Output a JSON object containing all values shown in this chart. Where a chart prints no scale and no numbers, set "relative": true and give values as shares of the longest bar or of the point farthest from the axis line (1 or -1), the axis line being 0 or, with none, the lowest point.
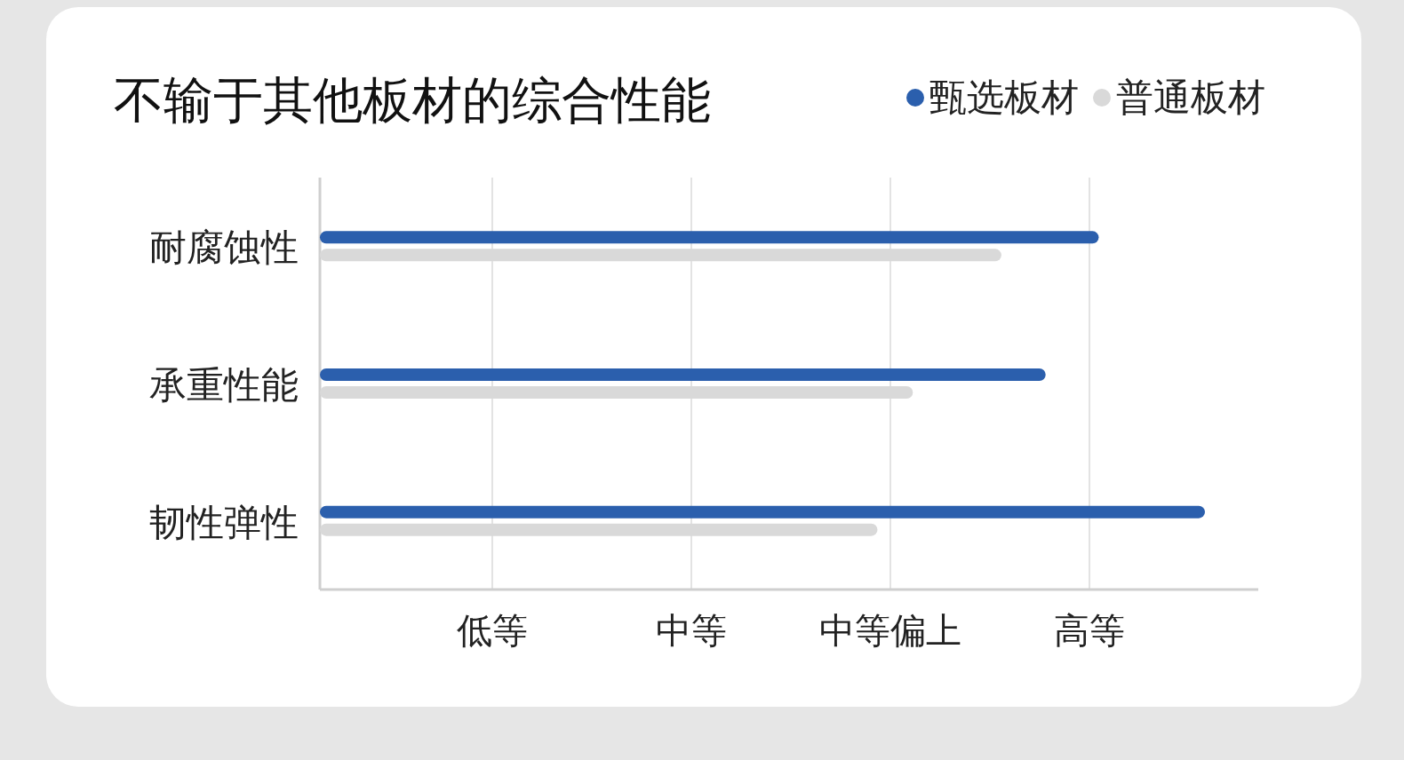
{
  "chart_data": {
    "type": "bar",
    "orientation": "horizontal",
    "relative": true,
    "title": "不输于其他板材的综合性能",
    "categories": [
      "耐腐蚀性",
      "承重性能",
      "韧性弹性"
    ],
    "series": [
      {
        "name": "甄选板材",
        "color": "#2b5fad",
        "values": [
          0.88,
          0.82,
          1
        ]
      },
      {
        "name": "普通板材",
        "color": "#d9d9d9",
        "values": [
          0.77,
          0.67,
          0.63
        ]
      }
    ],
    "annotations": [
      "低等",
      "中等",
      "中等偏上",
      "高等"
    ],
    "grid": "x",
    "legend": "top right"
  }
}
